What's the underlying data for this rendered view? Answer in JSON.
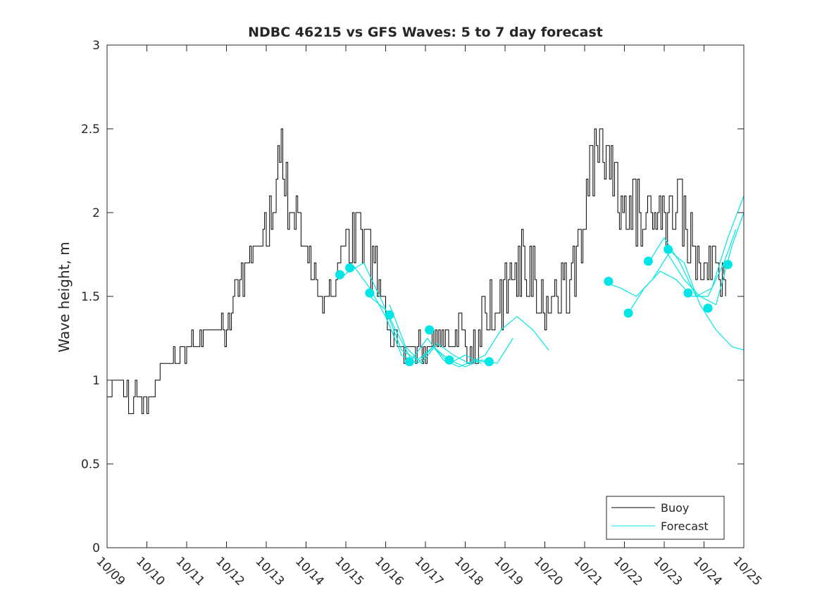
{
  "chart_data": {
    "type": "line",
    "title": "NDBC 46215 vs GFS Waves: 5 to 7 day forecast",
    "xlabel": "",
    "ylabel": "Wave height, m",
    "xlim": [
      0,
      16
    ],
    "ylim": [
      0,
      3
    ],
    "xticks": [
      {
        "value": 0,
        "label": "10/09"
      },
      {
        "value": 1,
        "label": "10/10"
      },
      {
        "value": 2,
        "label": "10/11"
      },
      {
        "value": 3,
        "label": "10/12"
      },
      {
        "value": 4,
        "label": "10/13"
      },
      {
        "value": 5,
        "label": "10/14"
      },
      {
        "value": 6,
        "label": "10/15"
      },
      {
        "value": 7,
        "label": "10/16"
      },
      {
        "value": 8,
        "label": "10/17"
      },
      {
        "value": 9,
        "label": "10/18"
      },
      {
        "value": 10,
        "label": "10/19"
      },
      {
        "value": 11,
        "label": "10/20"
      },
      {
        "value": 12,
        "label": "10/21"
      },
      {
        "value": 13,
        "label": "10/22"
      },
      {
        "value": 14,
        "label": "10/23"
      },
      {
        "value": 15,
        "label": "10/24"
      },
      {
        "value": 16,
        "label": "10/25"
      }
    ],
    "yticks": [
      {
        "value": 0,
        "label": "0"
      },
      {
        "value": 0.5,
        "label": "0.5"
      },
      {
        "value": 1,
        "label": "1"
      },
      {
        "value": 1.5,
        "label": "1.5"
      },
      {
        "value": 2,
        "label": "2"
      },
      {
        "value": 2.5,
        "label": "2.5"
      },
      {
        "value": 3,
        "label": "3"
      }
    ],
    "legend": {
      "position": "bottom-right",
      "entries": [
        "Buoy",
        "Forecast"
      ]
    },
    "colors": {
      "buoy": "#000000",
      "forecast": "#00e5e5",
      "axes": "#262626"
    },
    "series": [
      {
        "name": "Buoy",
        "x_days": [
          0.0,
          0.3,
          0.6,
          1.0,
          1.5,
          2.0,
          2.5,
          3.0,
          3.3,
          3.6,
          3.9,
          4.1,
          4.35,
          4.6,
          4.9,
          5.2,
          5.5,
          5.75,
          6.0,
          6.2,
          6.5,
          6.8,
          7.1,
          7.3,
          7.6,
          7.9,
          8.2,
          8.5,
          8.8,
          9.1,
          9.4,
          9.7,
          10.0,
          10.3,
          10.6,
          10.9,
          11.2,
          11.5,
          11.8,
          12.0,
          12.2,
          12.4,
          12.6,
          12.9,
          13.2,
          13.5,
          13.8,
          14.1,
          14.35,
          14.6,
          14.9,
          15.2,
          15.5
        ],
        "values": [
          0.9,
          1.0,
          0.9,
          0.85,
          1.1,
          1.2,
          1.3,
          1.3,
          1.6,
          1.7,
          1.8,
          2.0,
          2.3,
          2.1,
          1.9,
          1.6,
          1.5,
          1.6,
          1.8,
          1.9,
          1.8,
          1.6,
          1.3,
          1.2,
          1.15,
          1.2,
          1.25,
          1.2,
          1.3,
          1.15,
          1.3,
          1.4,
          1.5,
          1.7,
          1.6,
          1.5,
          1.55,
          1.5,
          1.7,
          2.0,
          2.3,
          2.45,
          2.35,
          2.1,
          2.0,
          1.95,
          2.1,
          2.0,
          2.1,
          1.9,
          1.6,
          1.7,
          1.6
        ],
        "noise": [
          0,
          0.05,
          0.1,
          0.05,
          0.1,
          0.08,
          0.05,
          0.1,
          0.1,
          0.15,
          0.15,
          0.2,
          0.25,
          0.2,
          0.15,
          0.1,
          0.1,
          0.1,
          0.15,
          0.2,
          0.2,
          0.15,
          0.1,
          0.1,
          0.08,
          0.1,
          0.1,
          0.1,
          0.1,
          0.12,
          0.2,
          0.25,
          0.25,
          0.25,
          0.25,
          0.25,
          0.2,
          0.2,
          0.2,
          0.2,
          0.25,
          0.25,
          0.25,
          0.2,
          0.2,
          0.2,
          0.2,
          0.2,
          0.2,
          0.2,
          0.2,
          0.15,
          0.1
        ]
      },
      {
        "name": "Forecast",
        "lines": [
          {
            "x": [
              5.85,
              6.2,
              6.6,
              7.0,
              7.4,
              7.8,
              8.2,
              8.6,
              9.0,
              9.4
            ],
            "values": [
              1.6,
              1.68,
              1.55,
              1.38,
              1.15,
              1.1,
              1.2,
              1.1,
              1.15,
              1.1
            ]
          },
          {
            "x": [
              6.1,
              6.45,
              6.85,
              7.25,
              7.65,
              8.05,
              8.45,
              8.85,
              9.25,
              9.65
            ],
            "values": [
              1.65,
              1.7,
              1.5,
              1.3,
              1.12,
              1.25,
              1.12,
              1.08,
              1.12,
              1.1
            ]
          },
          {
            "x": [
              6.6,
              7.0,
              7.4,
              7.8,
              8.2,
              8.6,
              9.0,
              9.4,
              9.8,
              10.2
            ],
            "values": [
              1.5,
              1.42,
              1.18,
              1.12,
              1.2,
              1.12,
              1.08,
              1.12,
              1.1,
              1.25
            ]
          },
          {
            "x": [
              7.1,
              7.5,
              7.9,
              8.3,
              8.7,
              9.1,
              9.5,
              9.9,
              10.3,
              10.7,
              11.1
            ],
            "values": [
              1.45,
              1.2,
              1.1,
              1.22,
              1.15,
              1.1,
              1.15,
              1.3,
              1.38,
              1.3,
              1.18
            ]
          },
          {
            "x": [
              12.55,
              12.9,
              13.3,
              13.7,
              14.1,
              14.5,
              14.9,
              15.3,
              15.7,
              16.0
            ],
            "values": [
              1.58,
              1.55,
              1.5,
              1.6,
              1.75,
              1.6,
              1.5,
              1.45,
              1.8,
              2.0
            ]
          },
          {
            "x": [
              13.1,
              13.5,
              13.9,
              14.3,
              14.7,
              15.1,
              15.5,
              15.8
            ],
            "values": [
              1.4,
              1.55,
              1.65,
              1.6,
              1.5,
              1.5,
              1.7,
              1.9
            ]
          },
          {
            "x": [
              13.6,
              14.0,
              14.4,
              14.8,
              15.2,
              15.6,
              16.0
            ],
            "values": [
              1.7,
              1.85,
              1.7,
              1.5,
              1.55,
              1.85,
              2.1
            ]
          },
          {
            "x": [
              14.1,
              14.5,
              14.9,
              15.3,
              15.7,
              16.0
            ],
            "values": [
              1.78,
              1.7,
              1.45,
              1.3,
              1.2,
              1.18
            ]
          }
        ],
        "markers": {
          "x": [
            5.85,
            6.1,
            6.6,
            7.1,
            7.6,
            8.1,
            8.6,
            9.6,
            12.6,
            13.1,
            13.6,
            14.1,
            14.6,
            15.1,
            15.6
          ],
          "values": [
            1.63,
            1.67,
            1.52,
            1.39,
            1.11,
            1.3,
            1.12,
            1.11,
            1.59,
            1.4,
            1.71,
            1.78,
            1.52,
            1.43,
            1.69
          ]
        }
      }
    ]
  }
}
